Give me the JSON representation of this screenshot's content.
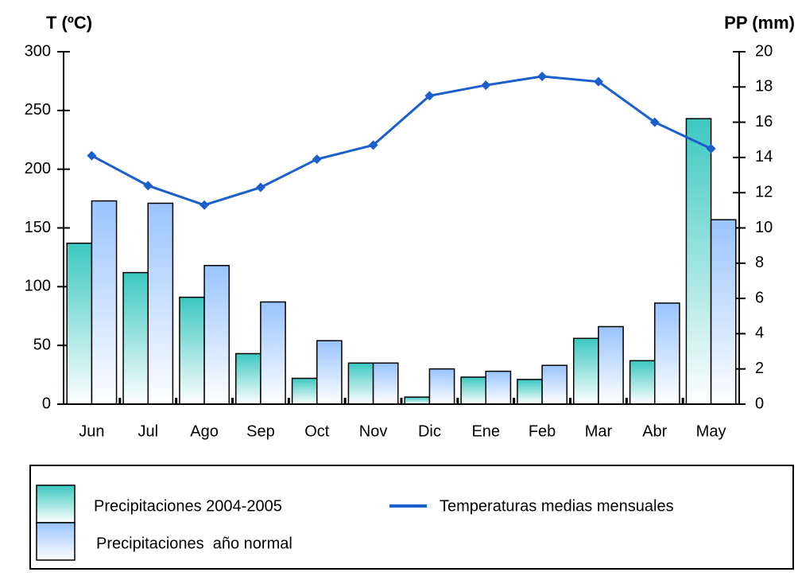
{
  "chart_data": {
    "type": "bar",
    "ylabel": "T (ºC)",
    "y2label": "PP (mm)",
    "categories": [
      "Jun",
      "Jul",
      "Ago",
      "Sep",
      "Oct",
      "Nov",
      "Dic",
      "Ene",
      "Feb",
      "Mar",
      "Abr",
      "May"
    ],
    "series": [
      {
        "name": "Precipitaciones 2004-2005",
        "type": "bar",
        "color": "#3cc8c0",
        "values": [
          137,
          112,
          91,
          43,
          22,
          35,
          6,
          23,
          21,
          56,
          37,
          243
        ]
      },
      {
        "name": "Precipitaciones  año normal",
        "type": "bar",
        "color": "#99c4ff",
        "values": [
          173,
          171,
          118,
          87,
          54,
          35,
          30,
          28,
          33,
          66,
          86,
          157
        ]
      },
      {
        "name": "Temperaturas medias mensuales",
        "type": "line",
        "axis": "y2",
        "color": "#1a5fcc",
        "values": [
          14.1,
          12.4,
          11.3,
          12.3,
          13.9,
          14.7,
          17.5,
          18.1,
          18.6,
          18.3,
          16.0,
          14.5
        ]
      }
    ],
    "ylim": [
      0,
      300
    ],
    "yticks": [
      0,
      50,
      100,
      150,
      200,
      250,
      300
    ],
    "y2lim": [
      0,
      20
    ],
    "y2ticks": [
      0,
      2,
      4,
      6,
      8,
      10,
      12,
      14,
      16,
      18,
      20
    ],
    "legend": "bottom"
  }
}
